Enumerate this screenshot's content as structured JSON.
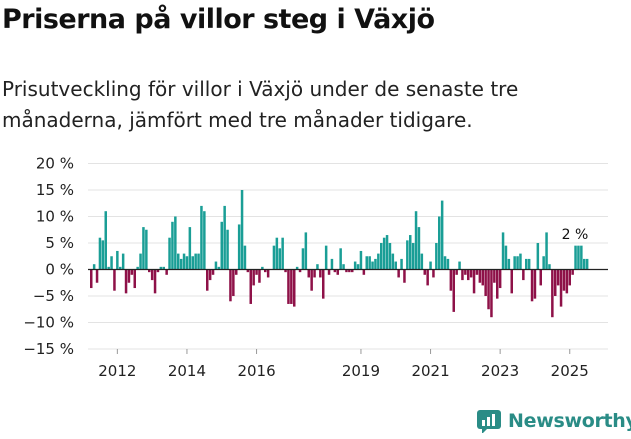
{
  "title": "Priserna på villor steg i Växjö",
  "subtitle": "Prisutveckling för villor i Växjö under de senaste tre månaderna, jämfört med tre månader tidigare.",
  "brand": "Newsworthy",
  "colors": {
    "positive": "#1a9e96",
    "negative": "#8e1148",
    "brand": "#2a8c86",
    "grid": "#e3e3e3"
  },
  "chart_data": {
    "type": "bar",
    "title": "Priserna på villor steg i Växjö",
    "xlabel": "",
    "ylabel": "",
    "ylim": [
      -15,
      20
    ],
    "yticks": [
      20,
      15,
      10,
      5,
      0,
      -5,
      -10,
      -15
    ],
    "ytick_labels": [
      "20 %",
      "15 %",
      "10 %",
      "5 %",
      "0 %",
      "−5 %",
      "−10 %",
      "−15 %"
    ],
    "xticks": [
      {
        "label": "2012",
        "index": 9
      },
      {
        "label": "2014",
        "index": 33
      },
      {
        "label": "2016",
        "index": 57
      },
      {
        "label": "2019",
        "index": 93
      },
      {
        "label": "2021",
        "index": 117
      },
      {
        "label": "2023",
        "index": 141
      },
      {
        "label": "2025",
        "index": 165
      }
    ],
    "annotation": {
      "text": "2 %",
      "index": 170,
      "value": 2
    },
    "x_start": "2011-03",
    "values": [
      -3.5,
      1.0,
      -2.5,
      6.0,
      5.5,
      11.0,
      0.5,
      2.5,
      -4.0,
      3.5,
      0.5,
      3.0,
      -4.5,
      -2.5,
      -1.0,
      -3.5,
      0.5,
      3.0,
      8.0,
      7.5,
      -0.5,
      -2.0,
      -4.5,
      -0.5,
      0.5,
      0.5,
      -1.0,
      6.0,
      9.0,
      10.0,
      3.0,
      2.0,
      3.0,
      2.5,
      8.0,
      2.5,
      3.0,
      3.0,
      12.0,
      11.0,
      -4.0,
      -2.0,
      -1.0,
      1.5,
      0.5,
      9.0,
      12.0,
      7.5,
      -6.0,
      -5.0,
      -1.0,
      8.5,
      15.0,
      4.5,
      -0.5,
      -6.5,
      -3.0,
      -1.0,
      -2.5,
      0.5,
      -0.5,
      -1.5,
      0.0,
      4.5,
      6.0,
      4.0,
      6.0,
      -0.5,
      -6.5,
      -6.5,
      -7.0,
      0.5,
      -0.5,
      4.0,
      7.0,
      -1.5,
      -4.0,
      -1.5,
      1.0,
      -1.5,
      -5.5,
      4.5,
      -1.0,
      2.0,
      -0.5,
      -1.0,
      4.0,
      1.0,
      -0.5,
      -0.5,
      -0.5,
      1.5,
      1.0,
      3.5,
      -1.0,
      2.5,
      2.5,
      1.5,
      2.0,
      3.0,
      5.0,
      6.0,
      6.5,
      5.0,
      3.0,
      1.5,
      -1.5,
      2.0,
      -2.5,
      5.5,
      6.5,
      5.0,
      11.0,
      8.0,
      3.0,
      -1.0,
      -3.0,
      1.5,
      -1.5,
      5.0,
      10.0,
      13.0,
      2.5,
      2.0,
      -4.0,
      -8.0,
      -1.0,
      1.5,
      -2.0,
      -1.0,
      -2.0,
      -1.5,
      -4.5,
      -1.0,
      -2.5,
      -3.0,
      -5.0,
      -7.5,
      -9.0,
      -2.5,
      -5.5,
      -3.5,
      7.0,
      4.5,
      2.0,
      -4.5,
      2.5,
      2.5,
      3.0,
      -2.0,
      2.0,
      2.0,
      -6.0,
      -5.5,
      5.0,
      -3.0,
      2.5,
      7.0,
      1.0,
      -9.0,
      -5.0,
      -3.0,
      -7.0,
      -4.0,
      -4.5,
      -3.0,
      -1.0,
      4.5,
      4.5,
      4.5,
      2.0,
      2.0
    ]
  }
}
